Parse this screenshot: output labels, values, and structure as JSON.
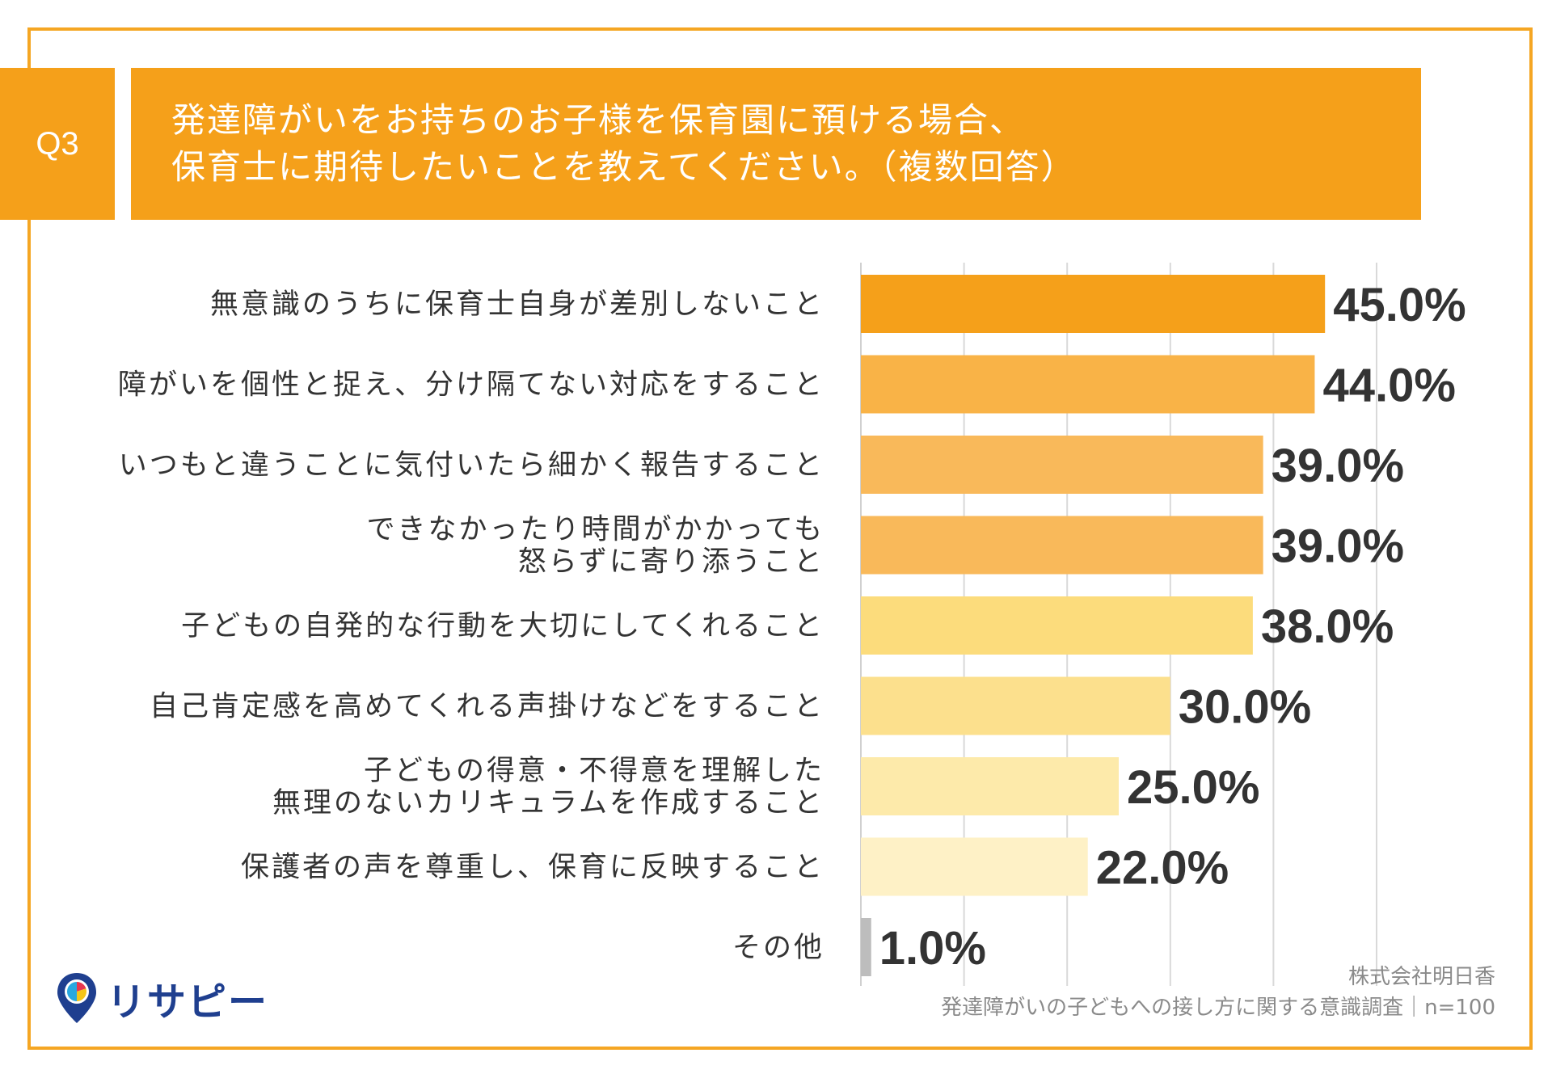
{
  "header": {
    "badge": "Q3",
    "question_line1": "発達障がいをお持ちのお子様を保育園に預ける場合、",
    "question_line2": "保育士に期待したいことを教えてください。（複数回答）"
  },
  "chart_data": {
    "type": "bar",
    "orientation": "horizontal",
    "xlim": [
      0,
      50
    ],
    "grid": true,
    "categories": [
      [
        "無意識のうちに保育士自身が差別しないこと"
      ],
      [
        "障がいを個性と捉え、分け隔てない対応をすること"
      ],
      [
        "いつもと違うことに気付いたら細かく報告すること"
      ],
      [
        "できなかったり時間がかかっても",
        "怒らずに寄り添うこと"
      ],
      [
        "子どもの自発的な行動を大切にしてくれること"
      ],
      [
        "自己肯定感を高めてくれる声掛けなどをすること"
      ],
      [
        "子どもの得意・不得意を理解した",
        "無理のないカリキュラムを作成すること"
      ],
      [
        "保護者の声を尊重し、保育に反映すること"
      ],
      [
        "その他"
      ]
    ],
    "values": [
      45.0,
      44.0,
      39.0,
      39.0,
      38.0,
      30.0,
      25.0,
      22.0,
      1.0
    ],
    "value_labels": [
      "45.0%",
      "44.0%",
      "39.0%",
      "39.0%",
      "38.0%",
      "30.0%",
      "25.0%",
      "22.0%",
      "1.0%"
    ],
    "colors": [
      "#F5A01A",
      "#F9B347",
      "#F9B95A",
      "#F9B95A",
      "#FCDC7C",
      "#FCE08D",
      "#FDEAAA",
      "#FEF1C6",
      "#BDBDBD"
    ]
  },
  "source": {
    "company": "株式会社明日香",
    "survey": "発達障がいの子どもへの接し方に関する意識調査｜n=100"
  },
  "logo": {
    "name": "リサピー",
    "colors": {
      "primary": "#1F3F8F",
      "accent_red": "#E8384F",
      "accent_yellow": "#F5C518",
      "accent_blue": "#29A8E0"
    }
  }
}
